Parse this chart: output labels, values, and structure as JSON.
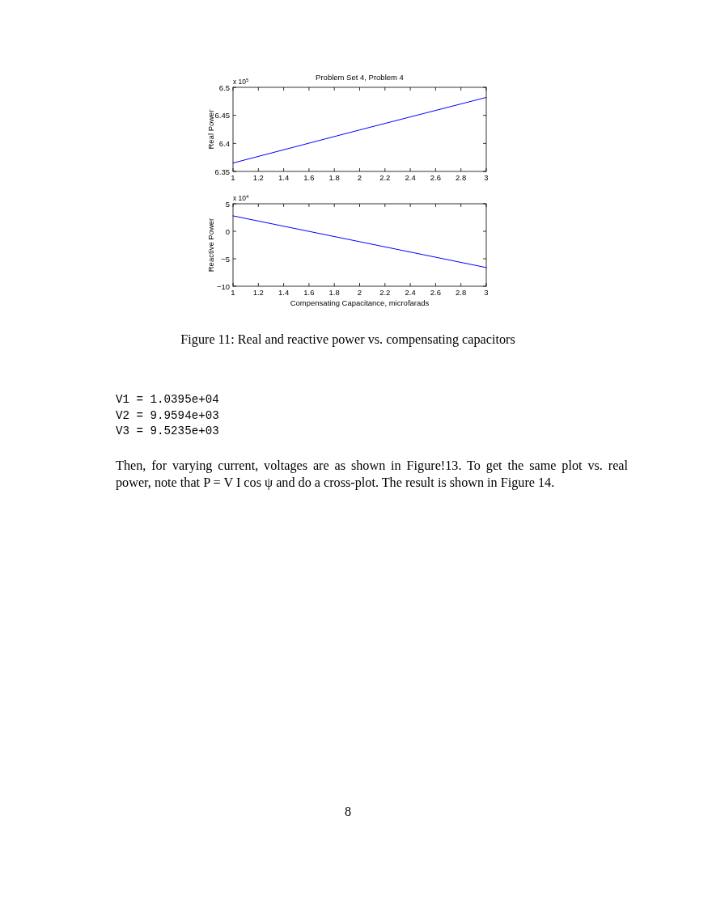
{
  "chart_data": [
    {
      "type": "line",
      "title": "Problem Set 4, Problem 4",
      "ylabel": "Real Power",
      "x": [
        1,
        2,
        3
      ],
      "series": [
        {
          "color": "#0000ff",
          "values": [
            6.365,
            6.424,
            6.482
          ]
        }
      ],
      "xlim": [
        1,
        3
      ],
      "xticks": [
        1,
        1.2,
        1.4,
        1.6,
        1.8,
        2,
        2.2,
        2.4,
        2.6,
        2.8,
        3
      ],
      "ylim": [
        6.35,
        6.5
      ],
      "yticks": [
        6.35,
        6.4,
        6.45,
        6.5
      ],
      "annotations": [
        "x 10$^{5}$"
      ]
    },
    {
      "type": "line",
      "xlabel": "Compensating Capacitance, microfarads",
      "ylabel": "Reactive Power",
      "x": [
        1,
        2,
        3
      ],
      "series": [
        {
          "color": "#0000ff",
          "values": [
            2.8,
            -1.9,
            -6.6
          ]
        }
      ],
      "xlim": [
        1,
        3
      ],
      "xticks": [
        1,
        1.2,
        1.4,
        1.6,
        1.8,
        2,
        2.2,
        2.4,
        2.6,
        2.8,
        3
      ],
      "ylim": [
        -10,
        5
      ],
      "yticks": [
        {
          "value": -10,
          "label": "−10"
        },
        {
          "value": -5,
          "label": "−5"
        },
        0,
        5
      ],
      "annotations": [
        "x 10$^{4}$"
      ]
    },
    {
      "type": "other",
      "annotations": [
        "Figure 11: Real and reactive power vs. compensating capacitors",
        "V1 = 1.0395e+04",
        "V2 = 9.9594e+03",
        "V3 = 9.5235e+03",
        "Then, for varying current, voltages are as shown in Figure!13. To get the same plot vs. real power, note that P = V I cos ψ and do a cross-plot. The result is shown in Figure 14.",
        "8"
      ]
    }
  ]
}
